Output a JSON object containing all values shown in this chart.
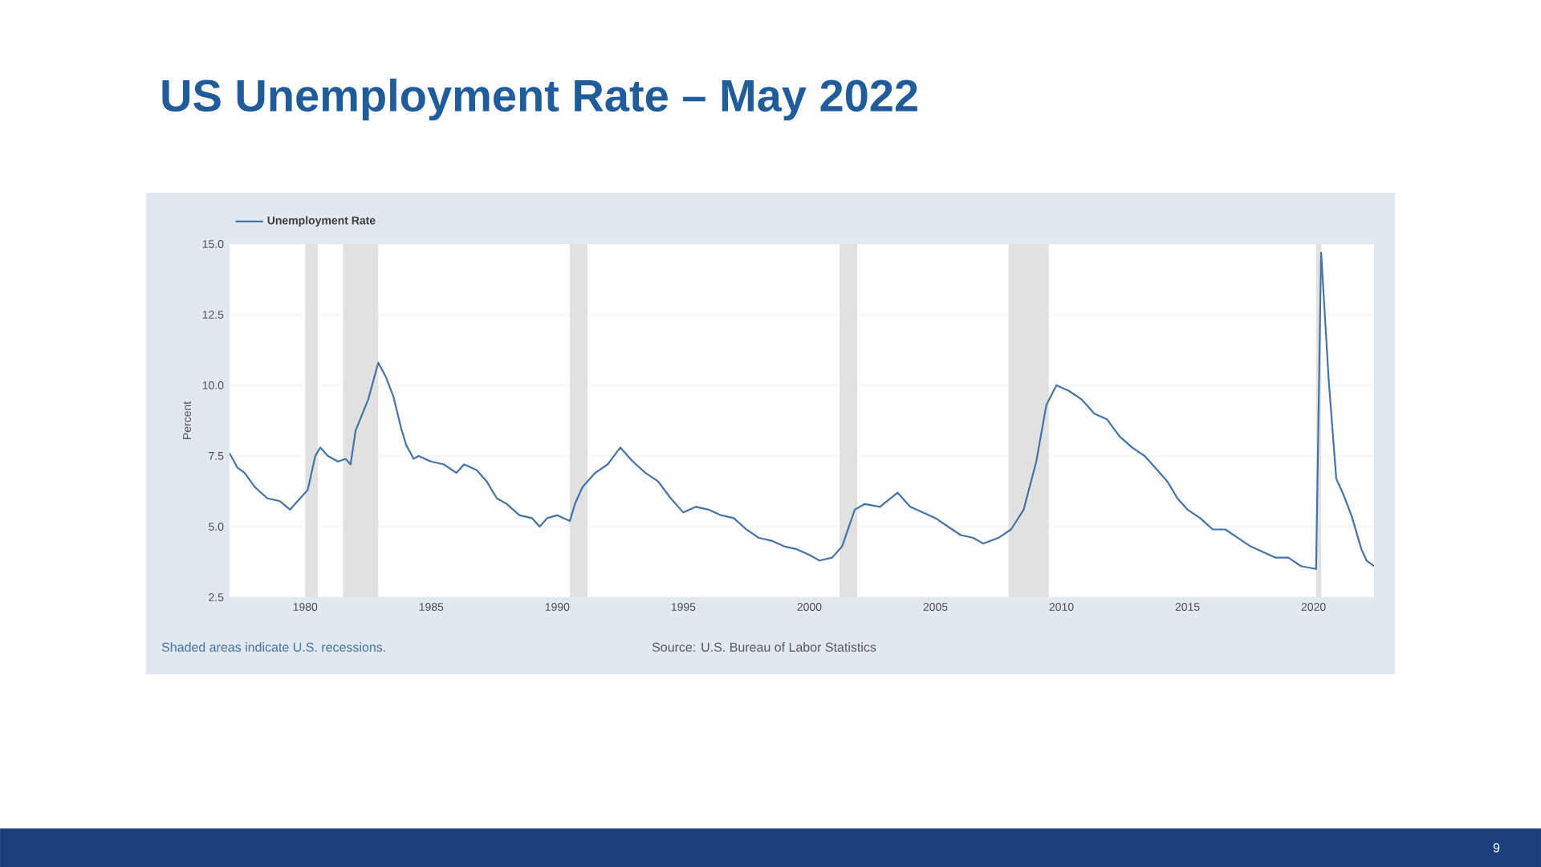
{
  "chart_data": {
    "type": "line",
    "title": "US Unemployment Rate – May 2022",
    "ylabel": "Percent",
    "x": [
      1977.0,
      1977.3,
      1977.6,
      1978.0,
      1978.5,
      1979.0,
      1979.4,
      1979.8,
      1980.1,
      1980.4,
      1980.6,
      1980.9,
      1981.3,
      1981.6,
      1981.8,
      1982.0,
      1982.5,
      1982.9,
      1983.2,
      1983.5,
      1983.8,
      1984.0,
      1984.3,
      1984.5,
      1985.0,
      1985.5,
      1986.0,
      1986.3,
      1986.8,
      1987.2,
      1987.6,
      1988.0,
      1988.5,
      1989.0,
      1989.3,
      1989.6,
      1990.0,
      1990.5,
      1990.7,
      1991.0,
      1991.5,
      1992.0,
      1992.5,
      1993.0,
      1993.5,
      1994.0,
      1994.5,
      1995.0,
      1995.5,
      1996.0,
      1996.5,
      1997.0,
      1997.5,
      1998.0,
      1998.5,
      1999.0,
      1999.5,
      2000.0,
      2000.4,
      2000.9,
      2001.3,
      2001.8,
      2002.2,
      2002.8,
      2003.5,
      2004.0,
      2004.5,
      2005.0,
      2005.5,
      2006.0,
      2006.5,
      2006.9,
      2007.5,
      2008.0,
      2008.5,
      2009.0,
      2009.4,
      2009.8,
      2010.3,
      2010.8,
      2011.3,
      2011.8,
      2012.3,
      2012.8,
      2013.3,
      2013.8,
      2014.2,
      2014.6,
      2015.0,
      2015.5,
      2016.0,
      2016.5,
      2017.0,
      2017.5,
      2018.0,
      2018.5,
      2019.0,
      2019.5,
      2020.1,
      2020.3,
      2020.6,
      2020.9,
      2021.2,
      2021.5,
      2021.9,
      2022.1,
      2022.4
    ],
    "series": [
      {
        "name": "Unemployment Rate",
        "color": "#4572a7",
        "values": [
          7.6,
          7.1,
          6.9,
          6.4,
          6.0,
          5.9,
          5.6,
          6.0,
          6.3,
          7.5,
          7.8,
          7.5,
          7.3,
          7.4,
          7.2,
          8.4,
          9.5,
          10.8,
          10.3,
          9.6,
          8.5,
          7.9,
          7.4,
          7.5,
          7.3,
          7.2,
          6.9,
          7.2,
          7.0,
          6.6,
          6.0,
          5.8,
          5.4,
          5.3,
          5.0,
          5.3,
          5.4,
          5.2,
          5.8,
          6.4,
          6.9,
          7.2,
          7.8,
          7.3,
          6.9,
          6.6,
          6.0,
          5.5,
          5.7,
          5.6,
          5.4,
          5.3,
          4.9,
          4.6,
          4.5,
          4.3,
          4.2,
          4.0,
          3.8,
          3.9,
          4.3,
          5.6,
          5.8,
          5.7,
          6.2,
          5.7,
          5.5,
          5.3,
          5.0,
          4.7,
          4.6,
          4.4,
          4.6,
          4.9,
          5.6,
          7.3,
          9.3,
          10.0,
          9.8,
          9.5,
          9.0,
          8.8,
          8.2,
          7.8,
          7.5,
          7.0,
          6.6,
          6.0,
          5.6,
          5.3,
          4.9,
          4.9,
          4.6,
          4.3,
          4.1,
          3.9,
          3.9,
          3.6,
          3.5,
          14.7,
          10.2,
          6.7,
          6.1,
          5.4,
          4.2,
          3.8,
          3.6
        ]
      }
    ],
    "xlim": [
      1977.0,
      2022.4
    ],
    "xticks": [
      1980,
      1985,
      1990,
      1995,
      2000,
      2005,
      2010,
      2015,
      2020
    ],
    "ylim": [
      2.5,
      15.0
    ],
    "yticks": [
      {
        "value": 2.5,
        "label": "2.5"
      },
      {
        "value": 5.0,
        "label": "5.0"
      },
      {
        "value": 7.5,
        "label": "7.5"
      },
      {
        "value": 10.0,
        "label": "10.0"
      },
      {
        "value": 12.5,
        "label": "12.5"
      },
      {
        "value": 15.0,
        "label": "15.0"
      }
    ],
    "bands": [
      {
        "axis": "x",
        "from": 1980.0,
        "to": 1980.5,
        "color": "#e1e1e1"
      },
      {
        "axis": "x",
        "from": 1981.5,
        "to": 1982.9,
        "color": "#e1e1e1"
      },
      {
        "axis": "x",
        "from": 1990.5,
        "to": 1991.2,
        "color": "#e1e1e1"
      },
      {
        "axis": "x",
        "from": 2001.2,
        "to": 2001.9,
        "color": "#e1e1e1"
      },
      {
        "axis": "x",
        "from": 2007.9,
        "to": 2009.5,
        "color": "#e1e1e1"
      },
      {
        "axis": "x",
        "from": 2020.1,
        "to": 2020.3,
        "color": "#e1e1e1"
      }
    ],
    "grid": "y",
    "legend": "top left",
    "line_style": "solid",
    "marker": "none",
    "annotations": [
      "Shaded areas indicate U.S. recessions.",
      "Source: U.S. Bureau of Labor Statistics",
      "9"
    ]
  }
}
